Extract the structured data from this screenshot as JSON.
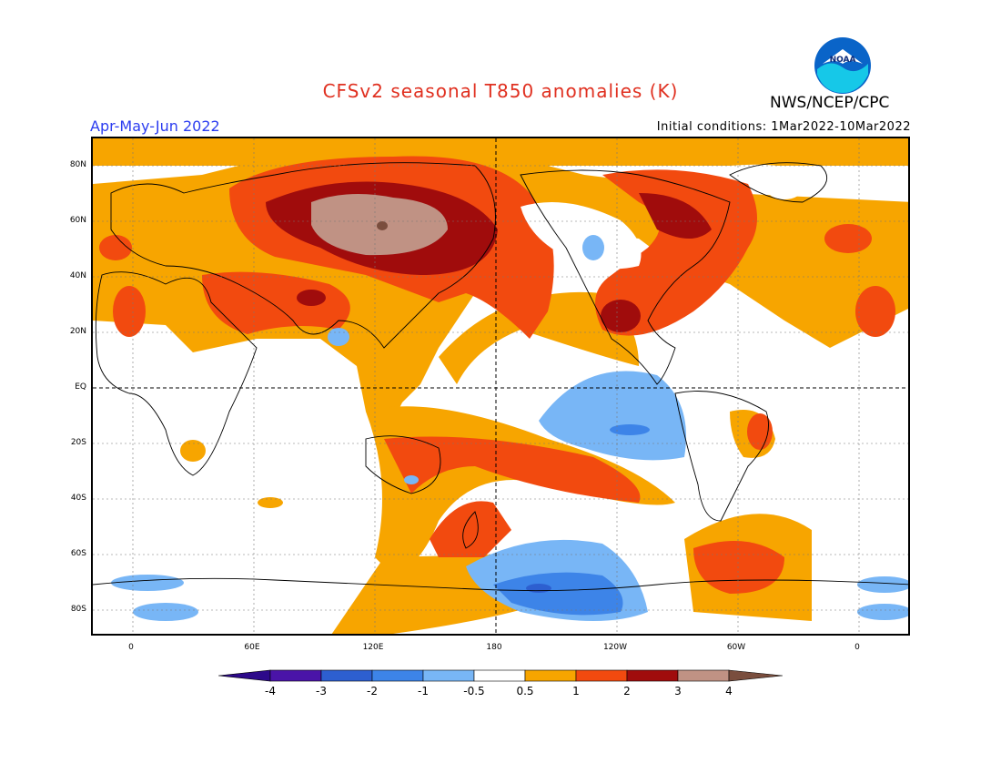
{
  "header": {
    "title": "CFSv2 seasonal T850 anomalies (K)",
    "agency": "NWS/NCEP/CPC",
    "season": "Apr-May-Jun 2022",
    "initial_conditions": "Initial conditions: 1Mar2022-10Mar2022",
    "logo_text": "NOAA"
  },
  "map": {
    "lat_labels": [
      "80N",
      "60N",
      "40N",
      "20N",
      "EQ",
      "20S",
      "40S",
      "60S",
      "80S"
    ],
    "lon_labels": [
      "0",
      "60E",
      "120E",
      "180",
      "120W",
      "60W",
      "0"
    ]
  },
  "colorbar": {
    "labels": [
      "-4",
      "-3",
      "-2",
      "-1",
      "-0.5",
      "0.5",
      "1",
      "2",
      "3",
      "4"
    ],
    "colors": [
      "#4a14a8",
      "#2d5fd0",
      "#3d84e8",
      "#78b6f6",
      "#ffffff",
      "#f7a500",
      "#f24a0f",
      "#a00c0c",
      "#c09284",
      "#7a4e3e",
      "#2d0a8a"
    ]
  }
}
